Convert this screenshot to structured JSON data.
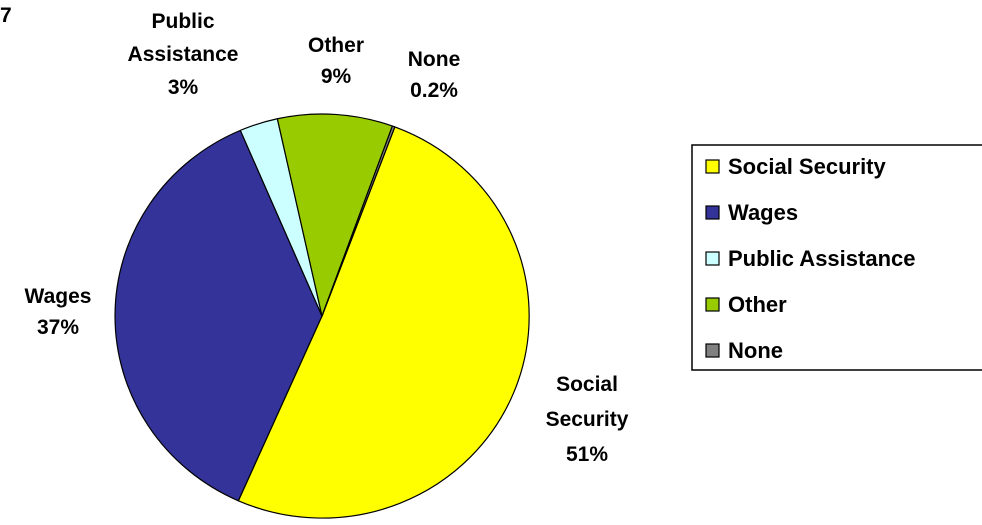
{
  "corner_text": "7",
  "chart_data": {
    "type": "pie",
    "slices": [
      {
        "label": "Social Security",
        "value": 51,
        "value_label": "51%",
        "color": "#FFFF00"
      },
      {
        "label": "Wages",
        "value": 37,
        "value_label": "37%",
        "color": "#333399"
      },
      {
        "label": "Public Assistance",
        "value": 3,
        "value_label": "3%",
        "color": "#CCFFFF"
      },
      {
        "label": "Other",
        "value": 9,
        "value_label": "9%",
        "color": "#99CC00"
      },
      {
        "label": "None",
        "value": 0.2,
        "value_label": "0.2%",
        "color": "#808080"
      }
    ],
    "legend_position": "right"
  }
}
